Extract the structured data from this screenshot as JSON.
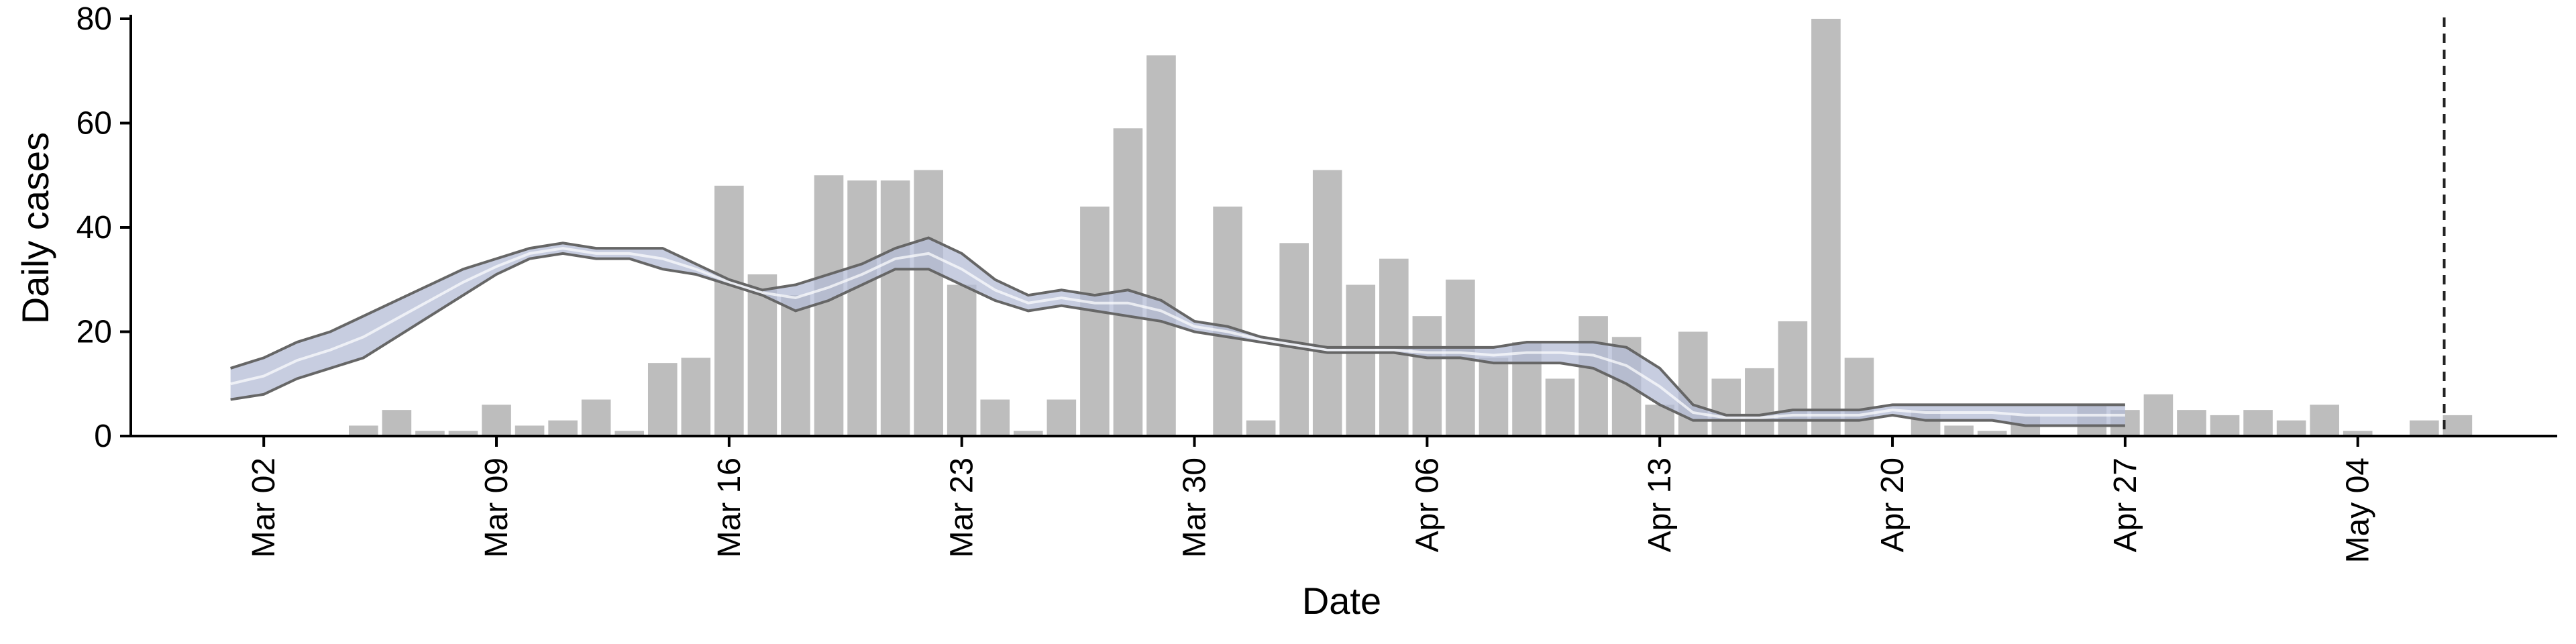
{
  "chart_data": {
    "type": "bar",
    "xlabel": "Date",
    "ylabel": "Daily cases",
    "ylim": [
      0,
      80
    ],
    "y_ticks": [
      0,
      20,
      40,
      60,
      80
    ],
    "x_ticks": [
      "2020-03-02",
      "2020-03-09",
      "2020-03-16",
      "2020-03-23",
      "2020-03-30",
      "2020-04-06",
      "2020-04-13",
      "2020-04-20",
      "2020-04-27",
      "2020-05-04"
    ],
    "x_tick_labels": [
      "Mar 02",
      "Mar 09",
      "Mar 16",
      "Mar 23",
      "Mar 30",
      "Apr 06",
      "Apr 13",
      "Apr 20",
      "Apr 27",
      "May 04"
    ],
    "x_range": [
      "2020-02-27",
      "2020-05-10"
    ],
    "grid": false,
    "vline_date": "2020-05-06",
    "bar_color": "#bdbdbd",
    "band_color": "#b4bcd6",
    "line_color": "#666666",
    "bars": {
      "dates": [
        "2020-03-05",
        "2020-03-06",
        "2020-03-07",
        "2020-03-08",
        "2020-03-09",
        "2020-03-10",
        "2020-03-11",
        "2020-03-12",
        "2020-03-13",
        "2020-03-14",
        "2020-03-15",
        "2020-03-16",
        "2020-03-17",
        "2020-03-18",
        "2020-03-19",
        "2020-03-20",
        "2020-03-21",
        "2020-03-22",
        "2020-03-23",
        "2020-03-24",
        "2020-03-25",
        "2020-03-26",
        "2020-03-27",
        "2020-03-28",
        "2020-03-29",
        "2020-03-30",
        "2020-03-31",
        "2020-04-01",
        "2020-04-02",
        "2020-04-03",
        "2020-04-04",
        "2020-04-05",
        "2020-04-06",
        "2020-04-07",
        "2020-04-08",
        "2020-04-09",
        "2020-04-10",
        "2020-04-11",
        "2020-04-12",
        "2020-04-13",
        "2020-04-14",
        "2020-04-15",
        "2020-04-16",
        "2020-04-17",
        "2020-04-18",
        "2020-04-19",
        "2020-04-20",
        "2020-04-21",
        "2020-04-22",
        "2020-04-23",
        "2020-04-24",
        "2020-04-25",
        "2020-04-26",
        "2020-04-27",
        "2020-04-28",
        "2020-04-29",
        "2020-04-30",
        "2020-05-01",
        "2020-05-02",
        "2020-05-03",
        "2020-05-04",
        "2020-05-05",
        "2020-05-06",
        "2020-05-07"
      ],
      "values": [
        2,
        5,
        1,
        1,
        6,
        2,
        3,
        7,
        1,
        14,
        15,
        48,
        31,
        27,
        50,
        49,
        49,
        51,
        29,
        7,
        1,
        7,
        44,
        59,
        73,
        0,
        44,
        3,
        37,
        51,
        29,
        34,
        23,
        30,
        15,
        18,
        11,
        23,
        19,
        6,
        20,
        11,
        13,
        22,
        80,
        15,
        0,
        5,
        2,
        1,
        4,
        0,
        6,
        5,
        8,
        5,
        4,
        5,
        3,
        6,
        1,
        0,
        3,
        4
      ]
    },
    "series": [
      {
        "dates": [
          "2020-03-01",
          "2020-03-02",
          "2020-03-03",
          "2020-03-04",
          "2020-03-05",
          "2020-03-06",
          "2020-03-07",
          "2020-03-08",
          "2020-03-09",
          "2020-03-10",
          "2020-03-11",
          "2020-03-12",
          "2020-03-13",
          "2020-03-14",
          "2020-03-15",
          "2020-03-16",
          "2020-03-17",
          "2020-03-18",
          "2020-03-19",
          "2020-03-20",
          "2020-03-21",
          "2020-03-22",
          "2020-03-23",
          "2020-03-24",
          "2020-03-25",
          "2020-03-26",
          "2020-03-27",
          "2020-03-28",
          "2020-03-29",
          "2020-03-30",
          "2020-03-31",
          "2020-04-01",
          "2020-04-02",
          "2020-04-03",
          "2020-04-04",
          "2020-04-05",
          "2020-04-06",
          "2020-04-07",
          "2020-04-08",
          "2020-04-09",
          "2020-04-10",
          "2020-04-11",
          "2020-04-12",
          "2020-04-13",
          "2020-04-14",
          "2020-04-15",
          "2020-04-16",
          "2020-04-17",
          "2020-04-18",
          "2020-04-19",
          "2020-04-20",
          "2020-04-21",
          "2020-04-22",
          "2020-04-23",
          "2020-04-24",
          "2020-04-25",
          "2020-04-26",
          "2020-04-27"
        ],
        "upper": [
          13,
          15,
          18,
          20,
          23,
          26,
          29,
          32,
          34,
          36,
          37,
          36,
          36,
          36,
          33,
          30,
          28,
          29,
          31,
          33,
          36,
          38,
          35,
          30,
          27,
          28,
          27,
          28,
          26,
          22,
          21,
          19,
          18,
          17,
          17,
          17,
          17,
          17,
          17,
          18,
          18,
          18,
          17,
          13,
          6,
          4,
          4,
          5,
          5,
          5,
          6,
          6,
          6,
          6,
          6,
          6,
          6,
          6
        ],
        "lower": [
          7,
          8,
          11,
          13,
          15,
          19,
          23,
          27,
          31,
          34,
          35,
          34,
          34,
          32,
          31,
          29,
          27,
          24,
          26,
          29,
          32,
          32,
          29,
          26,
          24,
          25,
          24,
          23,
          22,
          20,
          19,
          18,
          17,
          16,
          16,
          16,
          15,
          15,
          14,
          14,
          14,
          13,
          10,
          6,
          3,
          3,
          3,
          3,
          3,
          3,
          4,
          3,
          3,
          3,
          2,
          2,
          2,
          2
        ],
        "median": [
          10,
          11.5,
          14.5,
          16.5,
          19,
          22.5,
          26,
          29.5,
          32.5,
          35,
          36,
          35,
          35,
          34,
          32,
          29.5,
          27.5,
          26.5,
          28.5,
          31,
          34,
          35,
          32,
          28,
          25.5,
          26.5,
          25.5,
          25.5,
          24,
          21,
          20,
          18.5,
          17.5,
          16.5,
          16.5,
          16.5,
          16,
          16,
          15.5,
          16,
          16,
          15.5,
          13.5,
          9.5,
          4.5,
          3.5,
          3.5,
          4,
          4,
          4,
          5,
          4.5,
          4.5,
          4.5,
          4,
          4,
          4,
          4
        ]
      }
    ]
  }
}
